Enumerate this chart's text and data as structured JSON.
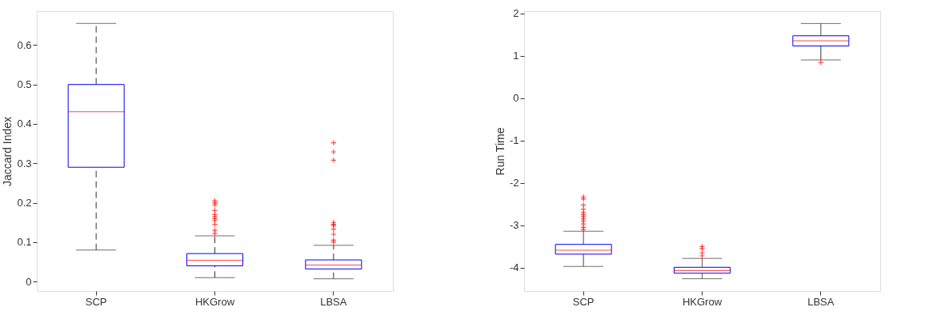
{
  "chart_data": [
    {
      "type": "box",
      "ylabel": "Jaccard Index",
      "categories": [
        "SCP",
        "HKGrow",
        "LBSA"
      ],
      "ylim": [
        -0.024,
        0.686
      ],
      "yticks": [
        0,
        0.1,
        0.2,
        0.3,
        0.4,
        0.5,
        0.6
      ],
      "grid": false,
      "marker": "cross",
      "line_style": "dashed",
      "boxes": [
        {
          "low": 0.08,
          "q1": 0.29,
          "median": 0.431,
          "q3": 0.5,
          "high": 0.655
        },
        {
          "low": 0.01,
          "q1": 0.04,
          "median": 0.054,
          "q3": 0.071,
          "high": 0.116,
          "outliers": [
            0.122,
            0.13,
            0.145,
            0.155,
            0.16,
            0.165,
            0.17,
            0.18,
            0.195,
            0.2,
            0.205
          ]
        },
        {
          "low": 0.007,
          "q1": 0.032,
          "median": 0.042,
          "q3": 0.055,
          "high": 0.092,
          "outliers": [
            0.1,
            0.105,
            0.12,
            0.133,
            0.142,
            0.145,
            0.15,
            0.308,
            0.329,
            0.352
          ]
        }
      ]
    },
    {
      "type": "box",
      "ylabel": "Run Time",
      "categories": [
        "SCP",
        "HKGrow",
        "LBSA"
      ],
      "ylim": [
        -4.55,
        2.05
      ],
      "yticks": [
        -4,
        -3,
        -2,
        -1,
        0,
        1,
        2
      ],
      "grid": false,
      "marker": "cross",
      "line_style": "solid",
      "boxes": [
        {
          "low": -3.97,
          "q1": -3.68,
          "median": -3.59,
          "q3": -3.45,
          "high": -3.14,
          "outliers": [
            -2.33,
            -2.38,
            -2.52,
            -2.62,
            -2.7,
            -2.75,
            -2.8,
            -2.85,
            -2.9,
            -2.97,
            -3.05,
            -3.1
          ]
        },
        {
          "low": -4.26,
          "q1": -4.13,
          "median": -4.07,
          "q3": -3.99,
          "high": -3.78,
          "outliers": [
            -3.5,
            -3.55,
            -3.65,
            -3.72
          ]
        },
        {
          "low": 0.9,
          "q1": 1.23,
          "median": 1.35,
          "q3": 1.47,
          "high": 1.76,
          "outliers": [
            0.84
          ]
        }
      ]
    }
  ]
}
